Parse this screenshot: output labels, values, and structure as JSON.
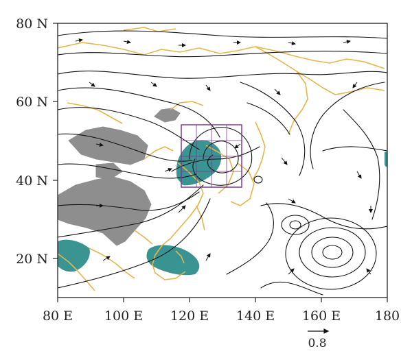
{
  "map": {
    "projection": "equirectangular",
    "lon_range_deg": [
      80,
      180
    ],
    "lat_range_deg": [
      10,
      80
    ],
    "x_ticks": [
      80,
      100,
      120,
      140,
      160,
      180
    ],
    "y_ticks": [
      20,
      40,
      60,
      80
    ],
    "x_tick_labels": [
      "80 E",
      "100 E",
      "120 E",
      "140 E",
      "160 E",
      "180"
    ],
    "y_tick_labels": [
      "20 N",
      "40 N",
      "60 N",
      "80 N"
    ],
    "reference_vector_label": "0.8",
    "colors": {
      "streamline": "#111111",
      "coastline": "#e6b54a",
      "significant_area": "#2f8f8c",
      "plateau_mask": "#8e8e8e",
      "box_outline": "#7b3a8f",
      "frame": "#222222"
    },
    "key_region_box_deg": {
      "lon": [
        117,
        136
      ],
      "lat": [
        38,
        54
      ]
    },
    "features": [
      {
        "name": "cyclonic-center",
        "lon": 130,
        "lat": 45
      },
      {
        "name": "anticyclonic-center",
        "lon": 162,
        "lat": 22
      },
      {
        "name": "small-vortex",
        "lon": 152,
        "lat": 30
      },
      {
        "name": "small-vortex-2",
        "lon": 142,
        "lat": 40
      }
    ]
  }
}
